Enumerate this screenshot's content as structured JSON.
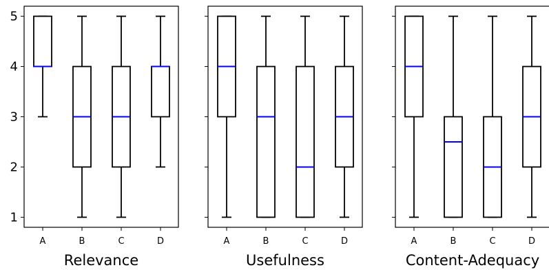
{
  "chart_data": [
    {
      "type": "box",
      "xlabel": "Relevance",
      "categories": [
        "A",
        "B",
        "C",
        "D"
      ],
      "ylim": [
        0.8,
        5.2
      ],
      "yticks": [
        1,
        2,
        3,
        4,
        5
      ],
      "boxes": [
        {
          "category": "A",
          "whislo": 3,
          "q1": 4,
          "med": 4,
          "q3": 5,
          "whishi": 5
        },
        {
          "category": "B",
          "whislo": 1,
          "q1": 2,
          "med": 3,
          "q3": 4,
          "whishi": 5
        },
        {
          "category": "C",
          "whislo": 1,
          "q1": 2,
          "med": 3,
          "q3": 4,
          "whishi": 5
        },
        {
          "category": "D",
          "whislo": 2,
          "q1": 3,
          "med": 4,
          "q3": 4,
          "whishi": 5
        }
      ]
    },
    {
      "type": "box",
      "xlabel": "Usefulness",
      "categories": [
        "A",
        "B",
        "C",
        "D"
      ],
      "ylim": [
        0.8,
        5.2
      ],
      "yticks": [
        1,
        2,
        3,
        4,
        5
      ],
      "boxes": [
        {
          "category": "A",
          "whislo": 1,
          "q1": 3,
          "med": 4,
          "q3": 5,
          "whishi": 5
        },
        {
          "category": "B",
          "whislo": 1,
          "q1": 1,
          "med": 3,
          "q3": 4,
          "whishi": 5
        },
        {
          "category": "C",
          "whislo": 1,
          "q1": 1,
          "med": 2,
          "q3": 4,
          "whishi": 5
        },
        {
          "category": "D",
          "whislo": 1,
          "q1": 2,
          "med": 3,
          "q3": 4,
          "whishi": 5
        }
      ]
    },
    {
      "type": "box",
      "xlabel": "Content-Adequacy",
      "categories": [
        "A",
        "B",
        "C",
        "D"
      ],
      "ylim": [
        0.8,
        5.2
      ],
      "yticks": [
        1,
        2,
        3,
        4,
        5
      ],
      "boxes": [
        {
          "category": "A",
          "whislo": 1,
          "q1": 3,
          "med": 4,
          "q3": 5,
          "whishi": 5
        },
        {
          "category": "B",
          "whislo": 1,
          "q1": 1,
          "med": 2.5,
          "q3": 3,
          "whishi": 5
        },
        {
          "category": "C",
          "whislo": 1,
          "q1": 1,
          "med": 2,
          "q3": 3,
          "whishi": 5
        },
        {
          "category": "D",
          "whislo": 1,
          "q1": 2,
          "med": 3,
          "q3": 4,
          "whishi": 5
        }
      ]
    }
  ],
  "style": {
    "median_color": "#0000ff",
    "box_color": "#000000",
    "background": "#ffffff"
  }
}
